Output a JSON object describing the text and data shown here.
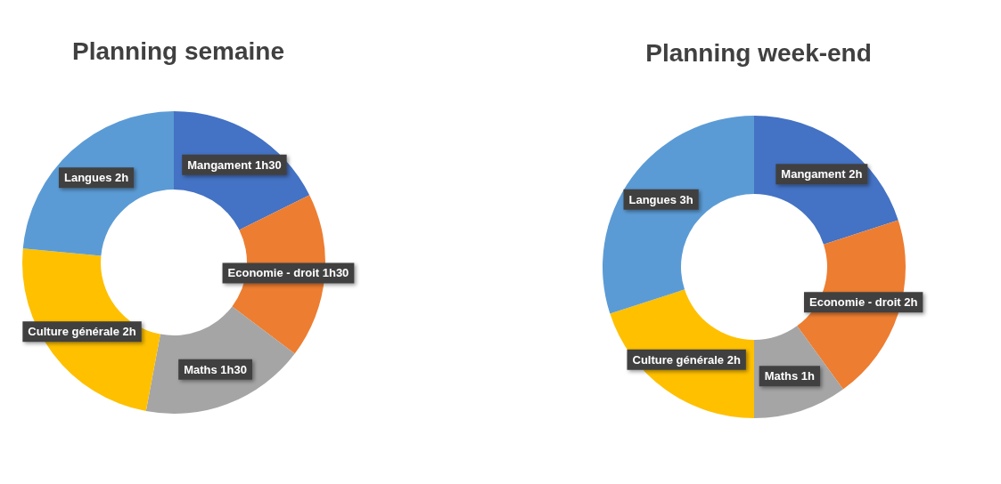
{
  "chart_data": [
    {
      "type": "donut",
      "title": "Planning semaine",
      "categories": [
        "Mangament",
        "Economie - droit",
        "Maths",
        "Culture générale",
        "Langues"
      ],
      "values": [
        1.5,
        1.5,
        1.5,
        2,
        2
      ],
      "value_labels": [
        "1h30",
        "1h30",
        "1h30",
        "2h",
        "2h"
      ],
      "colors": [
        "#4472c4",
        "#ed7d31",
        "#a5a5a5",
        "#ffc000",
        "#5b9bd5"
      ],
      "legend": false
    },
    {
      "type": "donut",
      "title": "Planning week-end",
      "categories": [
        "Mangament",
        "Economie - droit",
        "Maths",
        "Culture générale",
        "Langues"
      ],
      "values": [
        2,
        2,
        1,
        2,
        3
      ],
      "value_labels": [
        "2h",
        "2h",
        "1h",
        "2h",
        "3h"
      ],
      "colors": [
        "#4472c4",
        "#ed7d31",
        "#a5a5a5",
        "#ffc000",
        "#5b9bd5"
      ],
      "legend": false
    }
  ]
}
